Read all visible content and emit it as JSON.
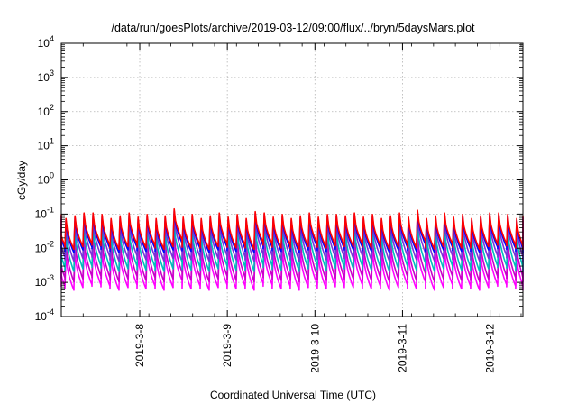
{
  "chart_data": {
    "type": "line",
    "title": "/data/run/goesPlots/archive/2019-03-12/09:00/flux/../bryn/5daysMars.plot",
    "xlabel": "Coordinated Universal Time (UTC)",
    "ylabel": "cGy/day",
    "yscale": "log",
    "ylim": [
      0.0001,
      10000
    ],
    "xlim": [
      "2019-03-07 02:30",
      "2019-03-12 09:00"
    ],
    "grid": true,
    "x_ticks": [
      "2019-3-8",
      "2019-3-9",
      "2019-3-10",
      "2019-3-11",
      "2019-3-12"
    ],
    "y_ticks": [
      {
        "base": "10",
        "exp": "-4"
      },
      {
        "base": "10",
        "exp": "-3"
      },
      {
        "base": "10",
        "exp": "-2"
      },
      {
        "base": "10",
        "exp": "-1"
      },
      {
        "base": "10",
        "exp": "0"
      },
      {
        "base": "10",
        "exp": "1"
      },
      {
        "base": "10",
        "exp": "2"
      },
      {
        "base": "10",
        "exp": "3"
      },
      {
        "base": "10",
        "exp": "4"
      }
    ],
    "pattern": {
      "period_hours": 2.47,
      "peak_log10": [
        -1.05,
        -1.1,
        -1.2,
        -1.45,
        -1.75,
        -2.1
      ],
      "trough_log10": [
        -1.95,
        -2.05,
        -2.3,
        -2.6,
        -2.9,
        -3.15
      ],
      "peak_jitter_log10": 0.08
    },
    "series": [
      {
        "color": "#ff0000"
      },
      {
        "color": "#0000ff"
      },
      {
        "color": "#7b2fd9"
      },
      {
        "color": "#00bcbc"
      },
      {
        "color": "#c800c8"
      },
      {
        "color": "#ff00ff"
      }
    ]
  }
}
